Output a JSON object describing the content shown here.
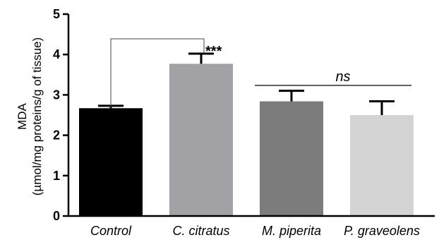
{
  "chart_data": {
    "type": "bar",
    "categories": [
      "Control",
      "C. citratus",
      "M. piperita",
      "P. graveolens"
    ],
    "values": [
      2.67,
      3.77,
      2.84,
      2.5
    ],
    "errors": [
      0.06,
      0.25,
      0.26,
      0.34
    ],
    "bar_colors": [
      "#000000",
      "#a2a2a6",
      "#7c7c7c",
      "#d4d4d4"
    ],
    "ylabel_line1": "MDA",
    "ylabel_line2": "(µmol/mg proteins/g of tissue)",
    "ylim": [
      0,
      5
    ],
    "yticks": [
      "0",
      "1",
      "2",
      "3",
      "4",
      "5"
    ],
    "annotations": {
      "significance": "***",
      "not_significant": "ns"
    },
    "grid": false
  }
}
